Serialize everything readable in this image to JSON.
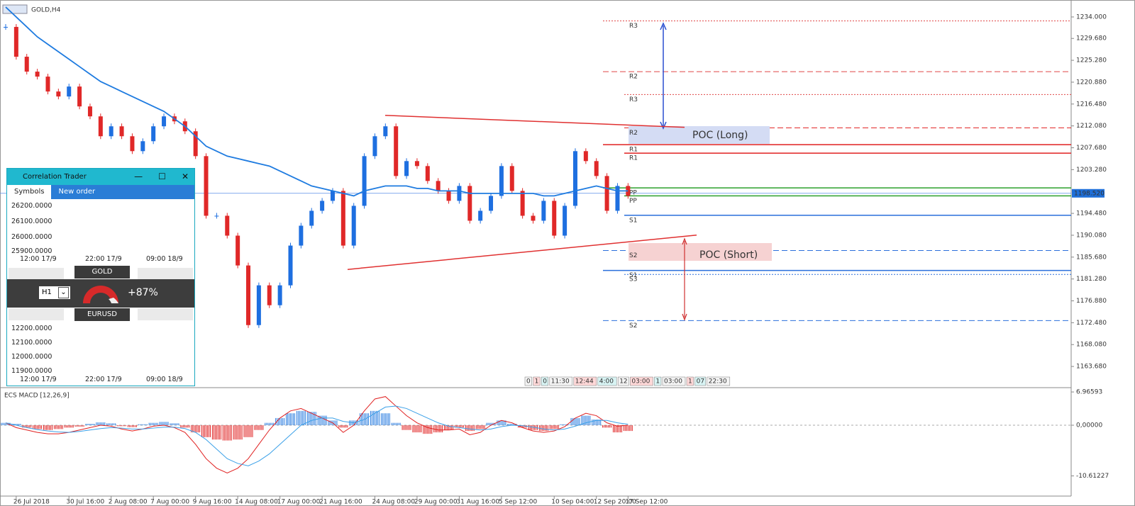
{
  "window": {
    "symbol": "GOLD,H4",
    "indicator": "ECS MACD [12,26,9]",
    "time_strip": [
      "0",
      "1",
      "0",
      "11:30",
      "12:44",
      "4:00",
      "12",
      "03:00",
      "1",
      "03:00",
      "1",
      "07",
      "22:30"
    ],
    "poc_long": "POC (Long)",
    "poc_short": "POC (Short)"
  },
  "chart_data": [
    {
      "type": "candlestick",
      "categories": [
        null,
        "26 Jul 2018",
        null,
        null,
        null,
        null,
        "30 Jul 16:00",
        null,
        null,
        null,
        "2 Aug 08:00",
        null,
        null,
        null,
        "7 Aug 00:00",
        null,
        null,
        null,
        "9 Aug 16:00",
        null,
        null,
        null,
        "14 Aug 08:00",
        null,
        null,
        null,
        "17 Aug 00:00",
        null,
        null,
        null,
        "21 Aug 16:00",
        null,
        null,
        null,
        null,
        "24 Aug 08:00",
        null,
        null,
        null,
        "29 Aug 00:00",
        null,
        null,
        null,
        "31 Aug 16:00",
        null,
        null,
        null,
        "5 Sep 12:00",
        null,
        null,
        null,
        null,
        "10 Sep 04:00",
        null,
        null,
        null,
        "12 Sep 20:00",
        null,
        null,
        "17 Sep 12:00"
      ],
      "close": [
        1232,
        1226,
        1223,
        1222,
        1219,
        1218,
        1220,
        1216,
        1214,
        1210,
        1212,
        1210,
        1207,
        1209,
        1212,
        1214,
        1213,
        1211,
        1206,
        1194,
        1194,
        1190,
        1184,
        1172,
        1180,
        1176,
        1180,
        1188,
        1192,
        1195,
        1197,
        1199,
        1188,
        1196,
        1206,
        1210,
        1212,
        1202,
        1205,
        1204,
        1201,
        1199,
        1197,
        1200,
        1193,
        1195,
        1198,
        1204,
        1199,
        1194,
        1193,
        1197,
        1190,
        1196,
        1207,
        1205,
        1202,
        1195,
        1200,
        1198
      ],
      "up_color": "#1e6fe0",
      "down_color": "#e02828",
      "ma": {
        "color": "#1e7be0",
        "values": [
          1236,
          1234,
          1232,
          1230,
          1228.5,
          1227,
          1225.5,
          1224,
          1222.5,
          1221,
          1220,
          1219,
          1218,
          1217,
          1216,
          1215,
          1213.5,
          1212,
          1210,
          1208,
          1207,
          1206,
          1205.5,
          1205,
          1204.5,
          1204,
          1203,
          1202,
          1201,
          1200,
          1199.5,
          1199,
          1198.5,
          1198,
          1199,
          1199.5,
          1200,
          1200,
          1200,
          1199.5,
          1199.5,
          1199,
          1199,
          1199,
          1198.5,
          1198.5,
          1198.5,
          1198.5,
          1198.5,
          1198.5,
          1198.5,
          1198,
          1198,
          1198.5,
          1199,
          1199.5,
          1200,
          1199.5,
          1199,
          1199
        ]
      },
      "ylim": [
        1159.7,
        1236.7
      ],
      "yticks": [
        {
          "value": 1234,
          "label": "1234.000"
        },
        {
          "value": 1229.68,
          "label": "1229.680"
        },
        {
          "value": 1225.28,
          "label": "1225.280"
        },
        {
          "value": 1220.88,
          "label": "1220.880"
        },
        {
          "value": 1216.48,
          "label": "1216.480"
        },
        {
          "value": 1212.08,
          "label": "1212.080"
        },
        {
          "value": 1207.68,
          "label": "1207.680"
        },
        {
          "value": 1203.28,
          "label": "1203.280"
        },
        {
          "value": 1194.48,
          "label": "1194.480"
        },
        {
          "value": 1190.08,
          "label": "1190.080"
        },
        {
          "value": 1185.68,
          "label": "1185.680"
        },
        {
          "value": 1181.28,
          "label": "1181.280"
        },
        {
          "value": 1176.88,
          "label": "1176.880"
        },
        {
          "value": 1172.48,
          "label": "1172.480"
        },
        {
          "value": 1168.08,
          "label": "1168.080"
        },
        {
          "value": 1163.68,
          "label": "1163.680"
        }
      ],
      "current_price": {
        "value": 1198.52,
        "label": "1198.520"
      },
      "levels": [
        {
          "label": "R3",
          "value": 1233.2,
          "color": "#e04848",
          "style": "dotted"
        },
        {
          "label": "R2",
          "value": 1223.0,
          "color": "#e04848",
          "style": "dashed"
        },
        {
          "label": "R3",
          "value": 1218.4,
          "color": "#e04848",
          "style": "dotted"
        },
        {
          "label": "R2",
          "value": 1211.7,
          "color": "#e02020",
          "style": "dashed"
        },
        {
          "label": "R1",
          "value": 1208.3,
          "color": "#e02020",
          "style": "solid"
        },
        {
          "label": "R1",
          "value": 1206.6,
          "color": "#e02020",
          "style": "solid"
        },
        {
          "label": "PP",
          "value": 1199.6,
          "color": "#2ca02c",
          "style": "solid"
        },
        {
          "label": "PP",
          "value": 1198.0,
          "color": "#2ca02c",
          "style": "solid"
        },
        {
          "label": "S1",
          "value": 1194.1,
          "color": "#2a6fdb",
          "style": "solid"
        },
        {
          "label": "S2",
          "value": 1187.0,
          "color": "#2a6fdb",
          "style": "dashed"
        },
        {
          "label": "S1",
          "value": 1183.0,
          "color": "#2a6fdb",
          "style": "solid"
        },
        {
          "label": "S3",
          "value": 1182.2,
          "color": "#2a6fdb",
          "style": "dotted"
        },
        {
          "label": "S2",
          "value": 1172.9,
          "color": "#2a6fdb",
          "style": "dashed"
        }
      ],
      "trendlines": [
        {
          "color": "#e03030",
          "values": [
            1214.2,
            1211.8
          ]
        },
        {
          "color": "#e03030",
          "values": [
            1183.2,
            1190.1
          ]
        }
      ]
    },
    {
      "type": "macd",
      "histogram": [
        0.5,
        0.3,
        -0.5,
        -0.8,
        -1,
        -0.8,
        -0.5,
        -0.3,
        0.3,
        0.6,
        0.4,
        -0.2,
        -0.4,
        0.2,
        0.5,
        0.7,
        0.4,
        -0.5,
        -1.5,
        -2.5,
        -3,
        -3.2,
        -3,
        -2.5,
        -1,
        0.5,
        1.5,
        2.5,
        3,
        2.8,
        2,
        1,
        -0.5,
        1,
        2.5,
        3,
        2.5,
        0.5,
        -1,
        -1.5,
        -1.8,
        -1.5,
        -1,
        -0.5,
        -1.2,
        -0.8,
        0.5,
        1,
        0.3,
        -0.5,
        -1,
        -1.2,
        -0.8,
        0.2,
        1.5,
        2,
        1.2,
        -0.5,
        -1.5,
        -1.2
      ],
      "series": [
        {
          "color": "#e02020",
          "values": [
            0.5,
            -0.5,
            -1,
            -1.5,
            -1.8,
            -1.8,
            -1.5,
            -1,
            -0.5,
            0,
            -0.2,
            -0.8,
            -1.2,
            -0.8,
            -0.2,
            0,
            -0.5,
            -1.5,
            -4,
            -7,
            -9,
            -10,
            -9,
            -7,
            -4,
            -1,
            1.5,
            3,
            3.5,
            2.5,
            1.5,
            0.5,
            -1.5,
            0,
            3,
            5.5,
            6,
            4,
            2,
            0.5,
            -0.5,
            -1,
            -1,
            -0.8,
            -2,
            -1.5,
            0,
            1,
            0.5,
            -0.5,
            -1.2,
            -1.5,
            -1.2,
            -0.3,
            1.5,
            2.5,
            2,
            0.5,
            -0.2,
            0
          ]
        },
        {
          "color": "#3aa0e8",
          "values": [
            0.5,
            0,
            -0.5,
            -0.9,
            -1.2,
            -1.4,
            -1.5,
            -1.3,
            -1,
            -0.7,
            -0.5,
            -0.6,
            -0.8,
            -0.8,
            -0.6,
            -0.4,
            -0.4,
            -0.7,
            -1.5,
            -3,
            -5,
            -7,
            -8,
            -8.5,
            -7.5,
            -6,
            -4,
            -2,
            0,
            1,
            1.5,
            1.5,
            0.8,
            0.5,
            1.2,
            2.5,
            3.8,
            4,
            3.5,
            2.5,
            1.5,
            0.5,
            -0.2,
            -0.5,
            -0.8,
            -1,
            -0.8,
            -0.3,
            0,
            -0.1,
            -0.4,
            -0.8,
            -1,
            -0.8,
            -0.2,
            0.5,
            1,
            1,
            0.5,
            0.2
          ]
        }
      ],
      "up_color": "#2a7de0",
      "down_color": "#e02020",
      "ylim": [
        -14.39,
        7.57
      ],
      "yticks": [
        6.96593,
        {
          "value": 0,
          "label": "0,00000"
        },
        -10.61227
      ]
    }
  ],
  "correlation_trader": {
    "title": "Correlation Trader",
    "tabs": [
      "Symbols",
      "New order"
    ],
    "chart1_ticks": [
      "26200.0000",
      "26100.0000",
      "26000.0000",
      "25900.0000"
    ],
    "chart2_ticks": [
      "12200.0000",
      "12100.0000",
      "12000.0000",
      "11900.0000"
    ],
    "times": [
      "12:00 17/9",
      "22:00 17/9",
      "09:00 18/9"
    ],
    "symbol1": "GOLD",
    "symbol2": "EURUSD",
    "timeframe": "H1",
    "correlation": "+87%"
  }
}
